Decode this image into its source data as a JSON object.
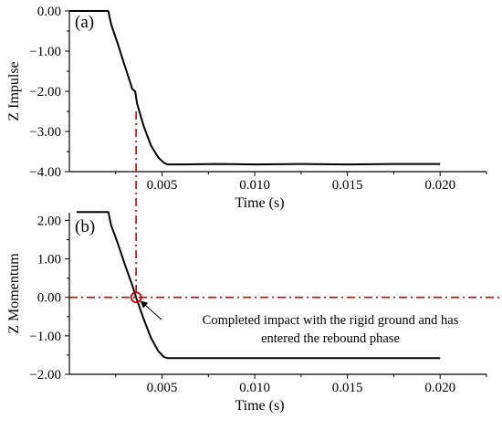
{
  "chart_data": [
    {
      "type": "line",
      "panel_tag": "(a)",
      "xlabel": "Time (s)",
      "ylabel": "Z Impulse",
      "xlim": [
        0,
        0.0225
      ],
      "ylim": [
        -4.0,
        0.0
      ],
      "xticks": [
        0.005,
        0.01,
        0.015,
        0.02
      ],
      "xtick_labels": [
        "0.005",
        "0.010",
        "0.015",
        "0.020"
      ],
      "yticks": [
        0.0,
        -1.0,
        -2.0,
        -3.0,
        -4.0
      ],
      "ytick_labels": [
        "0.00",
        "−1.00",
        "−2.00",
        "−3.00",
        "−4.00"
      ],
      "grid": false,
      "series": [
        {
          "color": "#000000",
          "x": [
            0.0,
            0.0021,
            0.00225,
            0.0026,
            0.003,
            0.0034,
            0.00355,
            0.00365,
            0.004,
            0.0044,
            0.0048,
            0.0051,
            0.0053,
            0.006,
            0.008,
            0.01,
            0.0125,
            0.015,
            0.0175,
            0.02
          ],
          "y": [
            0.0,
            0.0,
            -0.33,
            -0.8,
            -1.38,
            -1.95,
            -2.0,
            -2.3,
            -2.85,
            -3.35,
            -3.65,
            -3.78,
            -3.82,
            -3.82,
            -3.81,
            -3.82,
            -3.81,
            -3.82,
            -3.81,
            -3.81
          ]
        }
      ]
    },
    {
      "type": "line",
      "panel_tag": "(b)",
      "xlabel": "Time (s)",
      "ylabel": "Z Momentum",
      "xlim": [
        0,
        0.0225
      ],
      "ylim": [
        -2.0,
        2.2
      ],
      "xticks": [
        0.005,
        0.01,
        0.015,
        0.02
      ],
      "xtick_labels": [
        "0.005",
        "0.010",
        "0.015",
        "0.020"
      ],
      "yticks": [
        2.0,
        1.0,
        0.0,
        -1.0,
        -2.0
      ],
      "ytick_labels": [
        "2.00",
        "1.00",
        "0.00",
        "−1.00",
        "−2.00"
      ],
      "grid": false,
      "zero_line_color": "#cc0000",
      "series": [
        {
          "color": "#000000",
          "x": [
            0.0004,
            0.0021,
            0.00225,
            0.0026,
            0.003,
            0.0034,
            0.0036,
            0.004,
            0.0044,
            0.0048,
            0.0051,
            0.0053,
            0.007,
            0.01,
            0.015,
            0.02
          ],
          "y": [
            2.22,
            2.22,
            1.88,
            1.42,
            0.85,
            0.3,
            0.0,
            -0.55,
            -1.05,
            -1.4,
            -1.55,
            -1.58,
            -1.58,
            -1.58,
            -1.58,
            -1.58
          ]
        }
      ],
      "annotation": {
        "text_lines": [
          "Completed impact with the rigid ground and has",
          "entered the rebound phase"
        ],
        "point": {
          "x": 0.0036,
          "y": 0.0
        },
        "color": "#cc0000"
      }
    }
  ]
}
